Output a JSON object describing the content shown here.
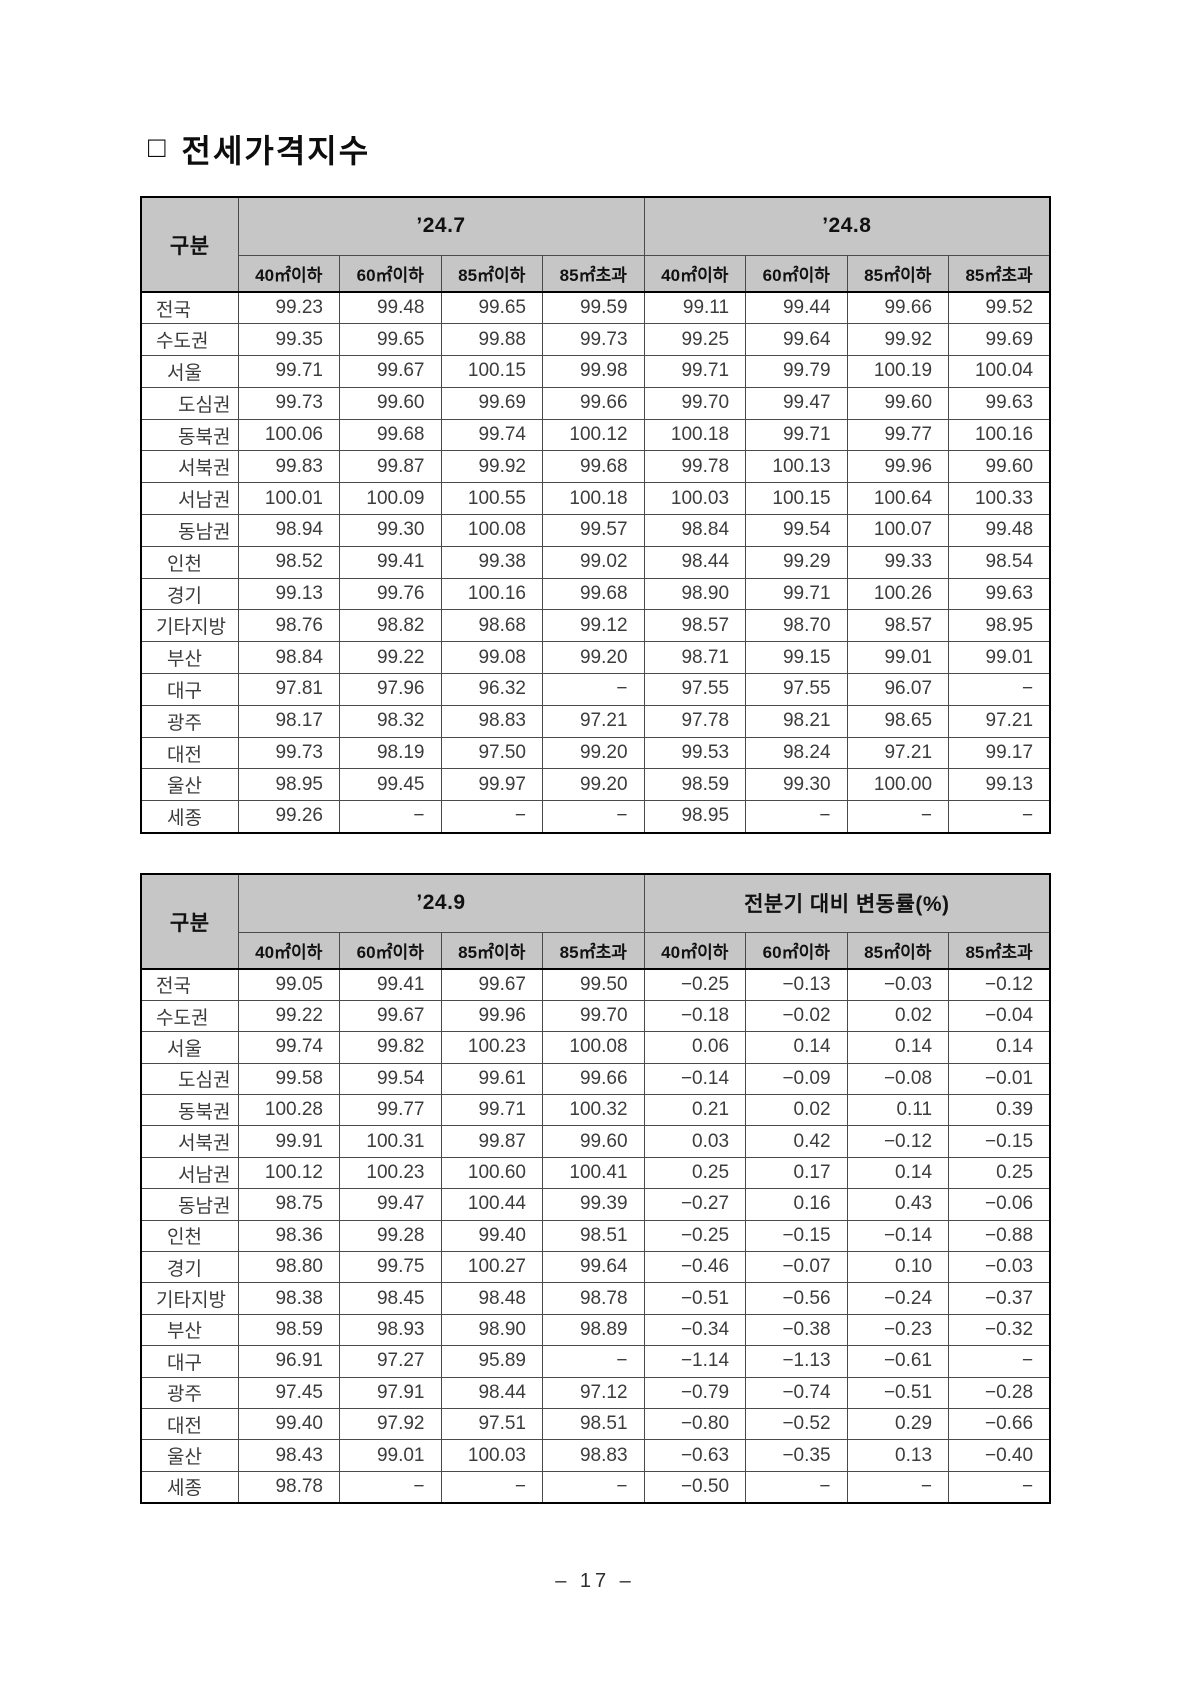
{
  "page": {
    "title_square": "□",
    "title": "전세가격지수",
    "footer": "– 17 –"
  },
  "tables": [
    {
      "corner": "구분",
      "groups": [
        "’24.7",
        "’24.8"
      ],
      "sub_headers": [
        "40㎡이하",
        "60㎡이하",
        "85㎡이하",
        "85㎡초과"
      ],
      "rows": [
        {
          "label": "전국",
          "indent": 0,
          "values": [
            "99.23",
            "99.48",
            "99.65",
            "99.59",
            "99.11",
            "99.44",
            "99.66",
            "99.52"
          ]
        },
        {
          "label": "수도권",
          "indent": 0,
          "values": [
            "99.35",
            "99.65",
            "99.88",
            "99.73",
            "99.25",
            "99.64",
            "99.92",
            "99.69"
          ]
        },
        {
          "label": "서울",
          "indent": 1,
          "values": [
            "99.71",
            "99.67",
            "100.15",
            "99.98",
            "99.71",
            "99.79",
            "100.19",
            "100.04"
          ]
        },
        {
          "label": "도심권",
          "indent": 2,
          "values": [
            "99.73",
            "99.60",
            "99.69",
            "99.66",
            "99.70",
            "99.47",
            "99.60",
            "99.63"
          ]
        },
        {
          "label": "동북권",
          "indent": 2,
          "values": [
            "100.06",
            "99.68",
            "99.74",
            "100.12",
            "100.18",
            "99.71",
            "99.77",
            "100.16"
          ]
        },
        {
          "label": "서북권",
          "indent": 2,
          "values": [
            "99.83",
            "99.87",
            "99.92",
            "99.68",
            "99.78",
            "100.13",
            "99.96",
            "99.60"
          ]
        },
        {
          "label": "서남권",
          "indent": 2,
          "values": [
            "100.01",
            "100.09",
            "100.55",
            "100.18",
            "100.03",
            "100.15",
            "100.64",
            "100.33"
          ]
        },
        {
          "label": "동남권",
          "indent": 2,
          "values": [
            "98.94",
            "99.30",
            "100.08",
            "99.57",
            "98.84",
            "99.54",
            "100.07",
            "99.48"
          ]
        },
        {
          "label": "인천",
          "indent": 1,
          "values": [
            "98.52",
            "99.41",
            "99.38",
            "99.02",
            "98.44",
            "99.29",
            "99.33",
            "98.54"
          ]
        },
        {
          "label": "경기",
          "indent": 1,
          "values": [
            "99.13",
            "99.76",
            "100.16",
            "99.68",
            "98.90",
            "99.71",
            "100.26",
            "99.63"
          ]
        },
        {
          "label": "기타지방",
          "indent": 0,
          "values": [
            "98.76",
            "98.82",
            "98.68",
            "99.12",
            "98.57",
            "98.70",
            "98.57",
            "98.95"
          ]
        },
        {
          "label": "부산",
          "indent": 1,
          "values": [
            "98.84",
            "99.22",
            "99.08",
            "99.20",
            "98.71",
            "99.15",
            "99.01",
            "99.01"
          ]
        },
        {
          "label": "대구",
          "indent": 1,
          "values": [
            "97.81",
            "97.96",
            "96.32",
            "−",
            "97.55",
            "97.55",
            "96.07",
            "−"
          ]
        },
        {
          "label": "광주",
          "indent": 1,
          "values": [
            "98.17",
            "98.32",
            "98.83",
            "97.21",
            "97.78",
            "98.21",
            "98.65",
            "97.21"
          ]
        },
        {
          "label": "대전",
          "indent": 1,
          "values": [
            "99.73",
            "98.19",
            "97.50",
            "99.20",
            "99.53",
            "98.24",
            "97.21",
            "99.17"
          ]
        },
        {
          "label": "울산",
          "indent": 1,
          "values": [
            "98.95",
            "99.45",
            "99.97",
            "99.20",
            "98.59",
            "99.30",
            "100.00",
            "99.13"
          ]
        },
        {
          "label": "세종",
          "indent": 1,
          "values": [
            "99.26",
            "−",
            "−",
            "−",
            "98.95",
            "−",
            "−",
            "−"
          ]
        }
      ]
    },
    {
      "corner": "구분",
      "groups": [
        "’24.9",
        "전분기 대비 변동률(%)"
      ],
      "sub_headers": [
        "40㎡이하",
        "60㎡이하",
        "85㎡이하",
        "85㎡초과"
      ],
      "rows": [
        {
          "label": "전국",
          "indent": 0,
          "values": [
            "99.05",
            "99.41",
            "99.67",
            "99.50",
            "−0.25",
            "−0.13",
            "−0.03",
            "−0.12"
          ]
        },
        {
          "label": "수도권",
          "indent": 0,
          "values": [
            "99.22",
            "99.67",
            "99.96",
            "99.70",
            "−0.18",
            "−0.02",
            "0.02",
            "−0.04"
          ]
        },
        {
          "label": "서울",
          "indent": 1,
          "values": [
            "99.74",
            "99.82",
            "100.23",
            "100.08",
            "0.06",
            "0.14",
            "0.14",
            "0.14"
          ]
        },
        {
          "label": "도심권",
          "indent": 2,
          "values": [
            "99.58",
            "99.54",
            "99.61",
            "99.66",
            "−0.14",
            "−0.09",
            "−0.08",
            "−0.01"
          ]
        },
        {
          "label": "동북권",
          "indent": 2,
          "values": [
            "100.28",
            "99.77",
            "99.71",
            "100.32",
            "0.21",
            "0.02",
            "0.11",
            "0.39"
          ]
        },
        {
          "label": "서북권",
          "indent": 2,
          "values": [
            "99.91",
            "100.31",
            "99.87",
            "99.60",
            "0.03",
            "0.42",
            "−0.12",
            "−0.15"
          ]
        },
        {
          "label": "서남권",
          "indent": 2,
          "values": [
            "100.12",
            "100.23",
            "100.60",
            "100.41",
            "0.25",
            "0.17",
            "0.14",
            "0.25"
          ]
        },
        {
          "label": "동남권",
          "indent": 2,
          "values": [
            "98.75",
            "99.47",
            "100.44",
            "99.39",
            "−0.27",
            "0.16",
            "0.43",
            "−0.06"
          ]
        },
        {
          "label": "인천",
          "indent": 1,
          "values": [
            "98.36",
            "99.28",
            "99.40",
            "98.51",
            "−0.25",
            "−0.15",
            "−0.14",
            "−0.88"
          ]
        },
        {
          "label": "경기",
          "indent": 1,
          "values": [
            "98.80",
            "99.75",
            "100.27",
            "99.64",
            "−0.46",
            "−0.07",
            "0.10",
            "−0.03"
          ]
        },
        {
          "label": "기타지방",
          "indent": 0,
          "values": [
            "98.38",
            "98.45",
            "98.48",
            "98.78",
            "−0.51",
            "−0.56",
            "−0.24",
            "−0.37"
          ]
        },
        {
          "label": "부산",
          "indent": 1,
          "values": [
            "98.59",
            "98.93",
            "98.90",
            "98.89",
            "−0.34",
            "−0.38",
            "−0.23",
            "−0.32"
          ]
        },
        {
          "label": "대구",
          "indent": 1,
          "values": [
            "96.91",
            "97.27",
            "95.89",
            "−",
            "−1.14",
            "−1.13",
            "−0.61",
            "−"
          ]
        },
        {
          "label": "광주",
          "indent": 1,
          "values": [
            "97.45",
            "97.91",
            "98.44",
            "97.12",
            "−0.79",
            "−0.74",
            "−0.51",
            "−0.28"
          ]
        },
        {
          "label": "대전",
          "indent": 1,
          "values": [
            "99.40",
            "97.92",
            "97.51",
            "98.51",
            "−0.80",
            "−0.52",
            "0.29",
            "−0.66"
          ]
        },
        {
          "label": "울산",
          "indent": 1,
          "values": [
            "98.43",
            "99.01",
            "100.03",
            "98.83",
            "−0.63",
            "−0.35",
            "0.13",
            "−0.40"
          ]
        },
        {
          "label": "세종",
          "indent": 1,
          "values": [
            "98.78",
            "−",
            "−",
            "−",
            "−0.50",
            "−",
            "−",
            "−"
          ]
        }
      ]
    }
  ]
}
